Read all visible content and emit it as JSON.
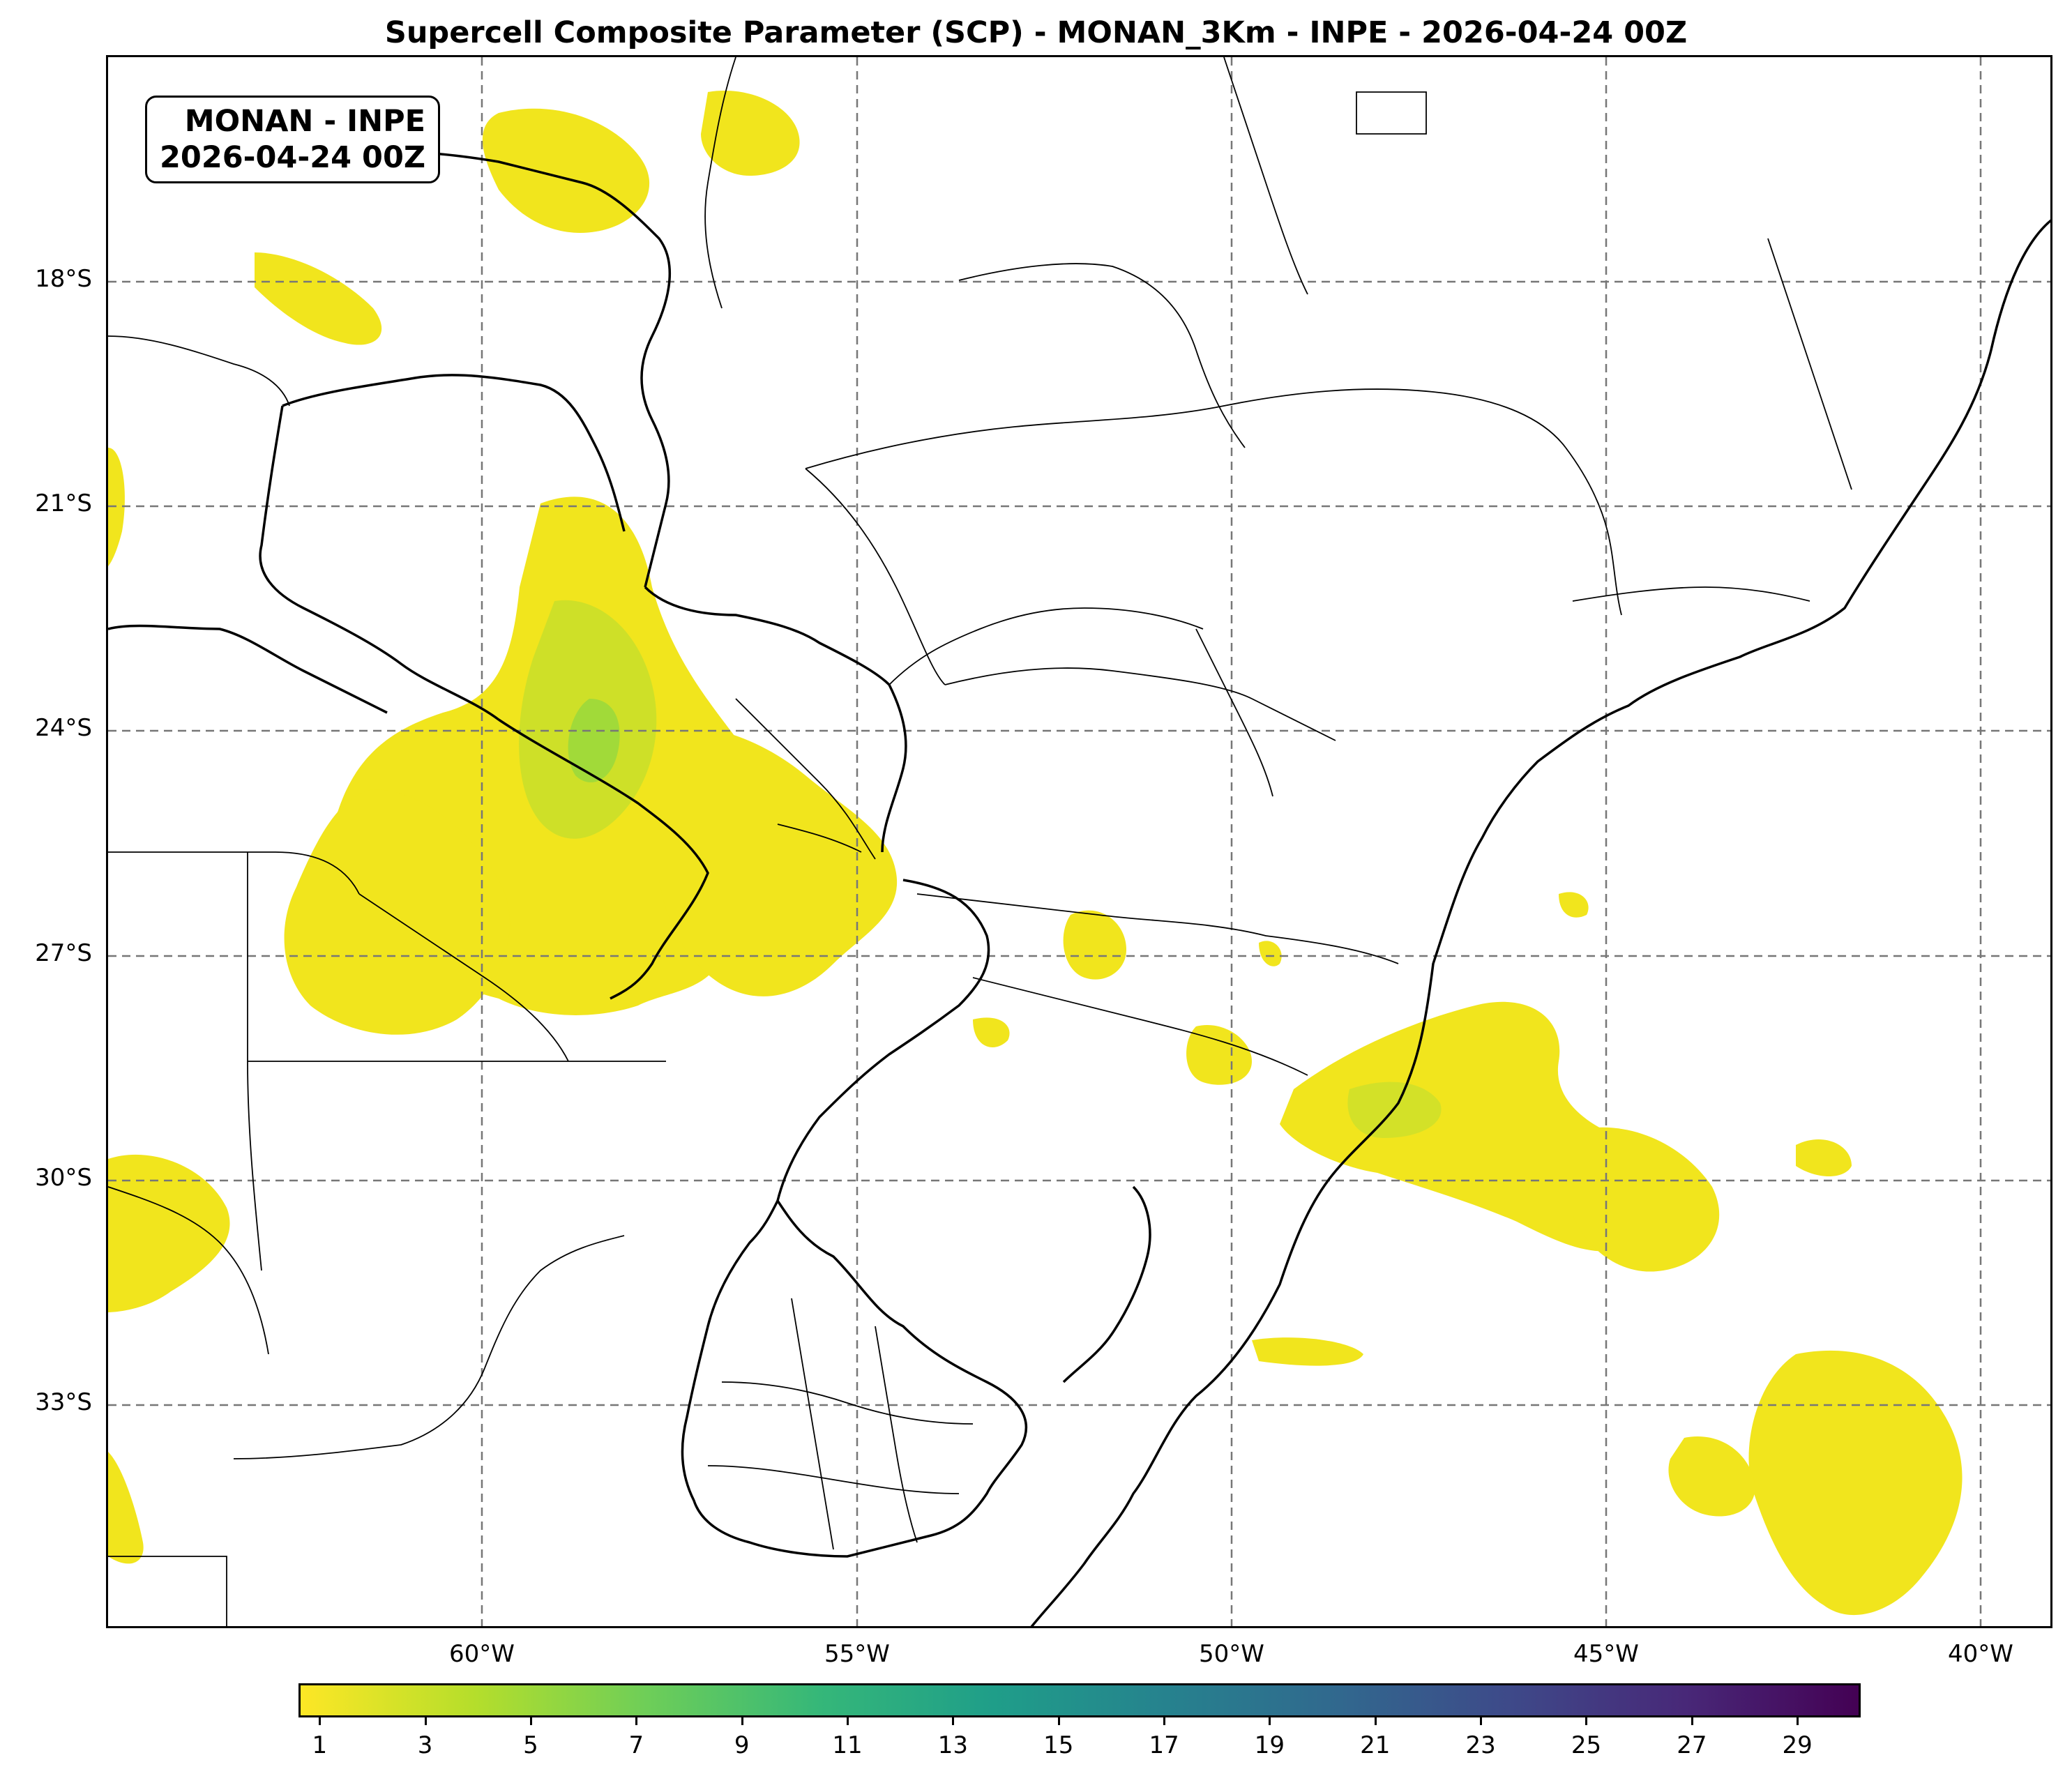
{
  "title": "Supercell Composite Parameter (SCP) - MONAN_3Km - INPE - 2026-04-24 00Z",
  "info_box": {
    "line1": "MONAN - INPE",
    "line2": "2026-04-24 00Z"
  },
  "lat_labels": [
    "18°S",
    "21°S",
    "24°S",
    "27°S",
    "30°S",
    "33°S"
  ],
  "lon_labels": [
    "60°W",
    "55°W",
    "50°W",
    "45°W",
    "40°W"
  ],
  "colorbar": {
    "colormap": "viridis (reversed)",
    "tick_labels": [
      "1",
      "3",
      "5",
      "7",
      "9",
      "11",
      "13",
      "15",
      "17",
      "19",
      "21",
      "23",
      "25",
      "27",
      "29"
    ],
    "colors": [
      "#fde725",
      "#b5de2b",
      "#6ece58",
      "#35b779",
      "#1f9e89",
      "#26828e",
      "#31688e",
      "#3e4989",
      "#482878",
      "#440154"
    ]
  }
}
